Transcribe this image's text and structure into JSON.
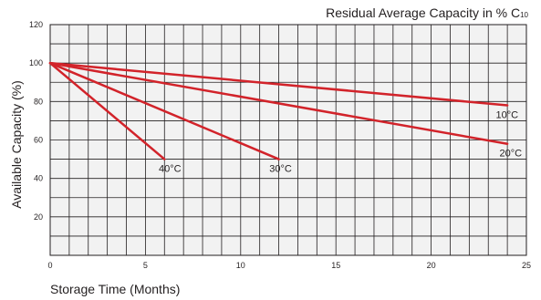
{
  "title_main": "Residual Average Capacity in % C",
  "title_sub": "10",
  "chart_data": {
    "type": "line",
    "title": "Residual Average Capacity in % C10",
    "xlabel": "Storage Time (Months)",
    "ylabel": "Available Capacity (%)",
    "xlim": [
      0,
      25
    ],
    "ylim": [
      0,
      120
    ],
    "x_ticks": [
      "0",
      "5",
      "10",
      "15",
      "20",
      "25"
    ],
    "y_ticks": [
      "20",
      "40",
      "60",
      "80",
      "100",
      "120"
    ],
    "grid": true,
    "line_color": "#d2232a",
    "series": [
      {
        "name": "10°C",
        "x": [
          0,
          24
        ],
        "y": [
          100,
          78
        ]
      },
      {
        "name": "20°C",
        "x": [
          0,
          24
        ],
        "y": [
          100,
          58
        ]
      },
      {
        "name": "30°C",
        "x": [
          0,
          12
        ],
        "y": [
          100,
          50
        ]
      },
      {
        "name": "40°C",
        "x": [
          0,
          6
        ],
        "y": [
          100,
          50
        ]
      }
    ]
  }
}
